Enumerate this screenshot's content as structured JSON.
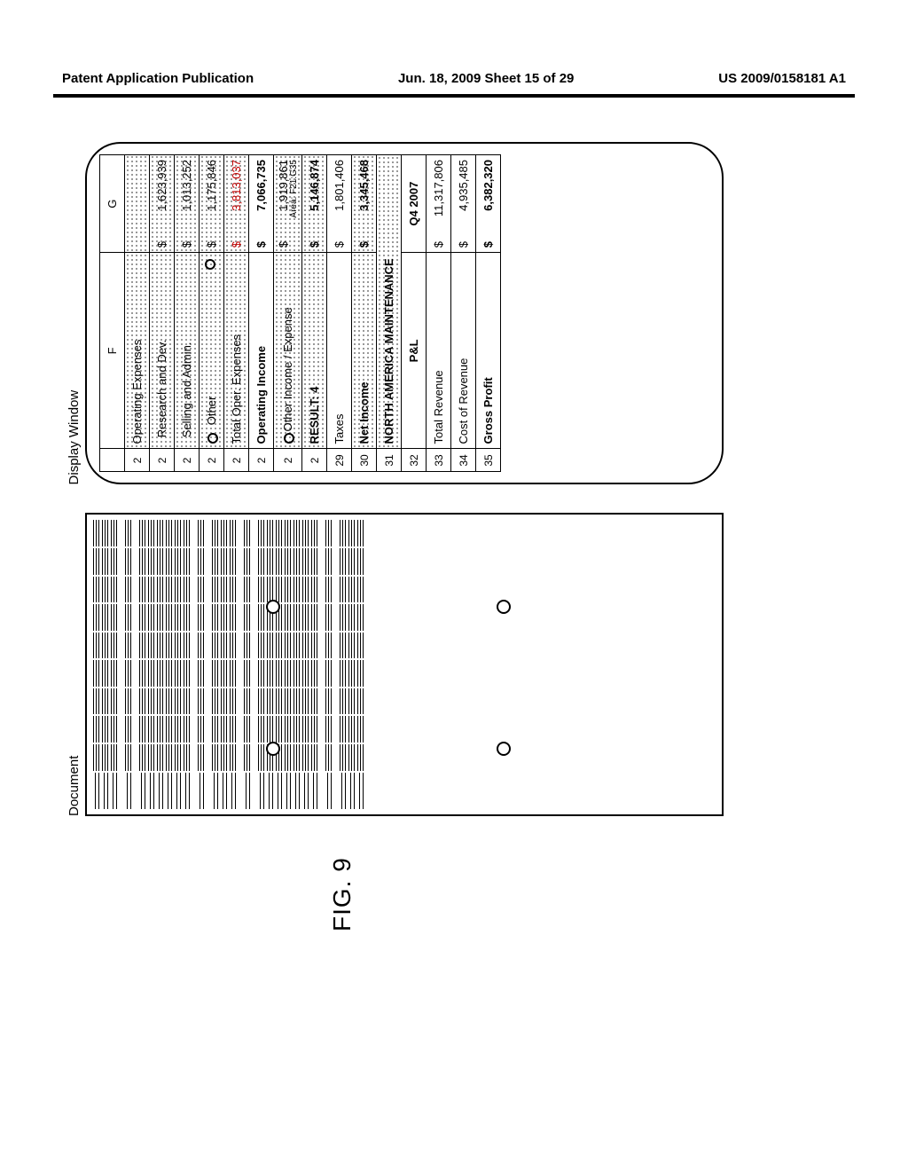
{
  "header": {
    "left": "Patent Application Publication",
    "mid": "Jun. 18, 2009  Sheet 15 of 29",
    "right": "US 2009/0158181 A1"
  },
  "figure_label": "FIG. 9",
  "document_label": "Document",
  "display_label": "Display Window",
  "columns": {
    "row": "",
    "F": "F",
    "G": "G"
  },
  "rows": [
    {
      "n": "2",
      "dot": true,
      "label": "Operating Expenses",
      "val": "",
      "lens": false
    },
    {
      "n": "2",
      "dot": true,
      "label": "Research and Dev.",
      "val": "1,623,939",
      "lens": false,
      "indent": true
    },
    {
      "n": "2",
      "dot": true,
      "label": "Selling and Admin.",
      "val": "1,013,252",
      "lens": false,
      "indent": true
    },
    {
      "n": "2",
      "dot": true,
      "label": "Other",
      "val": "1,175,846",
      "lens": true,
      "indent": true,
      "lens_end": true
    },
    {
      "n": "2",
      "dot": true,
      "label": "Total Oper. Expenses",
      "val": "3,813,037",
      "red": true,
      "lens": false
    },
    {
      "n": "2",
      "dot": false,
      "label": "Operating Income",
      "val": "7,066,735",
      "bold": true,
      "lens": false
    },
    {
      "n": "2",
      "dot": true,
      "label": "Other Income / Expense",
      "val": "1,919,861",
      "lens": true,
      "area": "Area: F21:G35"
    },
    {
      "n": "2",
      "dot": true,
      "label": "RESULT: 4",
      "val": "5,146,874",
      "bold": true,
      "lens": false
    },
    {
      "n": "29",
      "dot": false,
      "label": "Taxes",
      "val": "1,801,406",
      "lens": false
    },
    {
      "n": "30",
      "dot": true,
      "label": "Net Income",
      "val": "3,345,468",
      "bold": true,
      "lens": false
    },
    {
      "n": "31",
      "dot": true,
      "label": "NORTH AMERICA MAINTENANCE",
      "val": "",
      "bold": true,
      "span": true
    },
    {
      "n": "32",
      "dot": false,
      "label": "P&L",
      "val": "Q4 2007",
      "bold": true,
      "center": true
    },
    {
      "n": "33",
      "dot": false,
      "label": "Total Revenue",
      "val": "11,317,806",
      "lens": false
    },
    {
      "n": "34",
      "dot": false,
      "label": "Cost of Revenue",
      "val": "4,935,485",
      "lens": false
    },
    {
      "n": "35",
      "dot": false,
      "label": "Gross Profit",
      "val": "6,382,320",
      "bold": true,
      "lens": false
    }
  ],
  "colors": {
    "text": "#000000",
    "red": "#c00000",
    "dot": "#777777",
    "border": "#000000",
    "bg": "#ffffff"
  },
  "typography": {
    "header_fontsize": 15,
    "table_fontsize": 13,
    "fig_fontsize": 28
  }
}
